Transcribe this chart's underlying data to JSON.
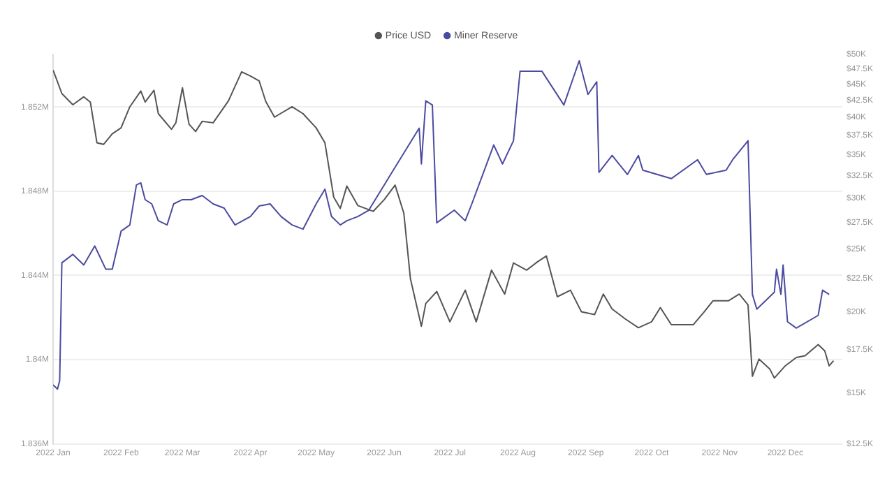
{
  "chart_data": {
    "type": "line",
    "legend": "top",
    "grid": "y",
    "log": "y2",
    "marker": "none",
    "line_style": "solid",
    "xlim": [
      "2022-01-01",
      "2022-12-27"
    ],
    "xticks": [
      {
        "value": "2022-01-01",
        "label": "2022 Jan"
      },
      {
        "value": "2022-02-01",
        "label": "2022 Feb"
      },
      {
        "value": "2022-03-01",
        "label": "2022 Mar"
      },
      {
        "value": "2022-04-01",
        "label": "2022 Apr"
      },
      {
        "value": "2022-05-01",
        "label": "2022 May"
      },
      {
        "value": "2022-06-01",
        "label": "2022 Jun"
      },
      {
        "value": "2022-07-01",
        "label": "2022 Jul"
      },
      {
        "value": "2022-08-01",
        "label": "2022 Aug"
      },
      {
        "value": "2022-09-01",
        "label": "2022 Sep"
      },
      {
        "value": "2022-10-01",
        "label": "2022 Oct"
      },
      {
        "value": "2022-11-01",
        "label": "2022 Nov"
      },
      {
        "value": "2022-12-01",
        "label": "2022 Dec"
      }
    ],
    "ylim": [
      1836000,
      1854500
    ],
    "yticks": [
      {
        "value": 1836000,
        "label": "1.836M"
      },
      {
        "value": 1840000,
        "label": "1.84M"
      },
      {
        "value": 1844000,
        "label": "1.844M"
      },
      {
        "value": 1848000,
        "label": "1.848M"
      },
      {
        "value": 1852000,
        "label": "1.852M"
      }
    ],
    "y2lim": [
      12500,
      50000
    ],
    "y2ticks": [
      {
        "value": 12500,
        "label": "$12.5K"
      },
      {
        "value": 15000,
        "label": "$15K"
      },
      {
        "value": 17500,
        "label": "$17.5K"
      },
      {
        "value": 20000,
        "label": "$20K"
      },
      {
        "value": 22500,
        "label": "$22.5K"
      },
      {
        "value": 25000,
        "label": "$25K"
      },
      {
        "value": 27500,
        "label": "$27.5K"
      },
      {
        "value": 30000,
        "label": "$30K"
      },
      {
        "value": 32500,
        "label": "$32.5K"
      },
      {
        "value": 35000,
        "label": "$35K"
      },
      {
        "value": 37500,
        "label": "$37.5K"
      },
      {
        "value": 40000,
        "label": "$40K"
      },
      {
        "value": 42500,
        "label": "$42.5K"
      },
      {
        "value": 45000,
        "label": "$45K"
      },
      {
        "value": 47500,
        "label": "$47.5K"
      },
      {
        "value": 50000,
        "label": "$50K"
      }
    ],
    "series": [
      {
        "name": "Price USD",
        "color": "#555555",
        "axis": "y2",
        "x": [
          "2022-01-01",
          "2022-01-05",
          "2022-01-10",
          "2022-01-15",
          "2022-01-18",
          "2022-01-21",
          "2022-01-24",
          "2022-01-28",
          "2022-02-01",
          "2022-02-05",
          "2022-02-10",
          "2022-02-12",
          "2022-02-16",
          "2022-02-18",
          "2022-02-24",
          "2022-02-26",
          "2022-03-01",
          "2022-03-04",
          "2022-03-07",
          "2022-03-10",
          "2022-03-15",
          "2022-03-22",
          "2022-03-28",
          "2022-04-01",
          "2022-04-05",
          "2022-04-08",
          "2022-04-12",
          "2022-04-20",
          "2022-04-25",
          "2022-05-01",
          "2022-05-05",
          "2022-05-09",
          "2022-05-12",
          "2022-05-15",
          "2022-05-20",
          "2022-05-27",
          "2022-06-01",
          "2022-06-06",
          "2022-06-10",
          "2022-06-13",
          "2022-06-18",
          "2022-06-20",
          "2022-06-25",
          "2022-07-01",
          "2022-07-08",
          "2022-07-13",
          "2022-07-20",
          "2022-07-26",
          "2022-07-30",
          "2022-08-05",
          "2022-08-10",
          "2022-08-14",
          "2022-08-19",
          "2022-08-25",
          "2022-08-30",
          "2022-09-05",
          "2022-09-09",
          "2022-09-13",
          "2022-09-19",
          "2022-09-25",
          "2022-10-01",
          "2022-10-05",
          "2022-10-10",
          "2022-10-15",
          "2022-10-20",
          "2022-10-25",
          "2022-10-29",
          "2022-11-05",
          "2022-11-10",
          "2022-11-14",
          "2022-11-16",
          "2022-11-19",
          "2022-11-24",
          "2022-11-26",
          "2022-12-01",
          "2022-12-06",
          "2022-12-10",
          "2022-12-16",
          "2022-12-19",
          "2022-12-21",
          "2022-12-23"
        ],
        "values": [
          47300,
          43500,
          41800,
          43000,
          42200,
          36500,
          36300,
          37700,
          38500,
          41500,
          43900,
          42200,
          44000,
          40500,
          38300,
          39200,
          44400,
          39000,
          38000,
          39400,
          39200,
          42400,
          47000,
          46300,
          45500,
          42300,
          40000,
          41500,
          40500,
          38500,
          36500,
          30100,
          28900,
          31300,
          29200,
          28600,
          29800,
          31400,
          28400,
          22500,
          19000,
          20600,
          21500,
          19300,
          21600,
          19300,
          23200,
          21300,
          23800,
          23200,
          23900,
          24400,
          21100,
          21600,
          20000,
          19800,
          21300,
          20200,
          19500,
          18900,
          19300,
          20300,
          19100,
          19100,
          19100,
          20000,
          20800,
          20800,
          21300,
          20500,
          15900,
          16900,
          16300,
          15800,
          16500,
          17000,
          17100,
          17800,
          17400,
          16500,
          16800
        ]
      },
      {
        "name": "Miner Reserve",
        "color": "#4b4ba0",
        "x": [
          "2022-01-01",
          "2022-01-03",
          "2022-01-04",
          "2022-01-05",
          "2022-01-10",
          "2022-01-15",
          "2022-01-20",
          "2022-01-25",
          "2022-01-28",
          "2022-02-01",
          "2022-02-05",
          "2022-02-08",
          "2022-02-10",
          "2022-02-12",
          "2022-02-15",
          "2022-02-18",
          "2022-02-22",
          "2022-02-25",
          "2022-03-01",
          "2022-03-05",
          "2022-03-10",
          "2022-03-15",
          "2022-03-20",
          "2022-03-25",
          "2022-04-01",
          "2022-04-05",
          "2022-04-10",
          "2022-04-15",
          "2022-04-20",
          "2022-04-25",
          "2022-05-01",
          "2022-05-05",
          "2022-05-08",
          "2022-05-12",
          "2022-05-15",
          "2022-05-20",
          "2022-05-25",
          "2022-06-04",
          "2022-06-17",
          "2022-06-18",
          "2022-06-20",
          "2022-06-23",
          "2022-06-25",
          "2022-07-03",
          "2022-07-08",
          "2022-07-11",
          "2022-07-16",
          "2022-07-21",
          "2022-07-25",
          "2022-07-30",
          "2022-08-02",
          "2022-08-12",
          "2022-08-22",
          "2022-08-29",
          "2022-09-02",
          "2022-09-06",
          "2022-09-07",
          "2022-09-13",
          "2022-09-20",
          "2022-09-25",
          "2022-09-27",
          "2022-10-10",
          "2022-10-22",
          "2022-10-26",
          "2022-11-04",
          "2022-11-07",
          "2022-11-14",
          "2022-11-16",
          "2022-11-18",
          "2022-11-26",
          "2022-11-27",
          "2022-11-29",
          "2022-11-30",
          "2022-12-02",
          "2022-12-06",
          "2022-12-16",
          "2022-12-18",
          "2022-12-21"
        ],
        "values": [
          1838800,
          1838600,
          1839000,
          1844600,
          1845000,
          1844500,
          1845400,
          1844300,
          1844300,
          1846100,
          1846400,
          1848300,
          1848400,
          1847600,
          1847400,
          1846600,
          1846400,
          1847400,
          1847600,
          1847600,
          1847800,
          1847400,
          1847200,
          1846400,
          1846800,
          1847300,
          1847400,
          1846800,
          1846400,
          1846200,
          1847400,
          1848100,
          1846800,
          1846400,
          1846600,
          1846800,
          1847100,
          1848800,
          1851000,
          1849300,
          1852300,
          1852100,
          1846500,
          1847100,
          1846600,
          1847400,
          1848800,
          1850200,
          1849300,
          1850400,
          1853700,
          1853700,
          1852100,
          1854200,
          1852600,
          1853200,
          1848900,
          1849700,
          1848800,
          1849700,
          1849000,
          1848600,
          1849500,
          1848800,
          1849000,
          1849500,
          1850400,
          1843100,
          1842400,
          1843200,
          1844300,
          1843100,
          1844500,
          1841800,
          1841500,
          1842100,
          1843300,
          1843100
        ]
      }
    ]
  }
}
